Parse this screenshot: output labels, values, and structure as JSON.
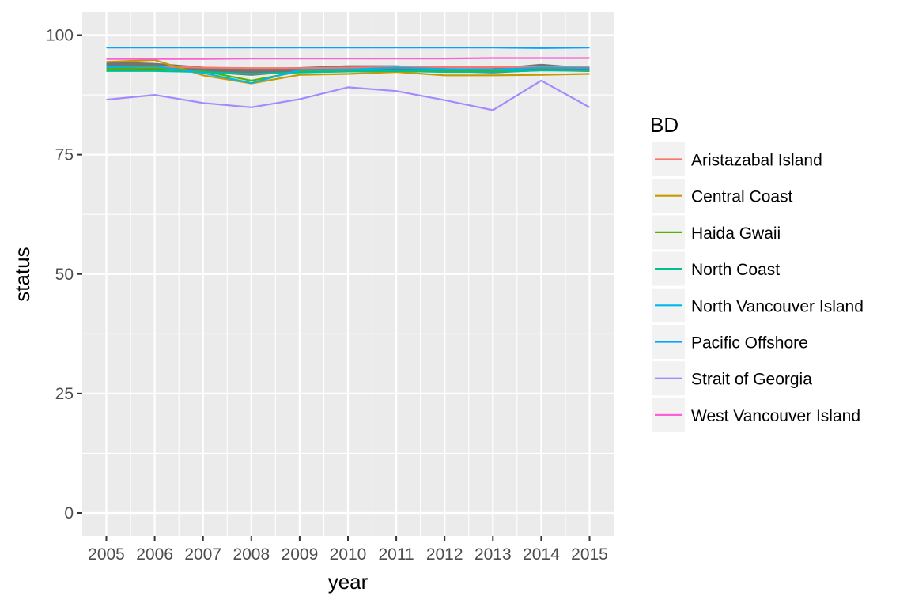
{
  "chart_data": {
    "type": "line",
    "title": "",
    "xlabel": "year",
    "ylabel": "status",
    "legend_title": "BD",
    "legend_position": "right",
    "grid": true,
    "xlim": [
      2005,
      2015
    ],
    "ylim": [
      0,
      100
    ],
    "x_ticks": [
      "2005",
      "2006",
      "2007",
      "2008",
      "2009",
      "2010",
      "2011",
      "2012",
      "2013",
      "2014",
      "2015"
    ],
    "y_ticks": [
      "0",
      "25",
      "50",
      "75",
      "100"
    ],
    "x": [
      2005,
      2006,
      2007,
      2008,
      2009,
      2010,
      2011,
      2012,
      2013,
      2014,
      2015
    ],
    "ribbon": {
      "color": "#555555",
      "lower": [
        92.8,
        92.8,
        92.2,
        91.5,
        92.3,
        92.7,
        92.8,
        92.3,
        92.0,
        92.5,
        92.3
      ],
      "upper": [
        94.5,
        94.2,
        93.4,
        93.1,
        93.3,
        93.7,
        93.7,
        93.1,
        93.1,
        94.0,
        93.2
      ]
    },
    "series": [
      {
        "name": "Aristazabal Island",
        "color": "#F8766D",
        "values": [
          93.4,
          93.4,
          93.2,
          93.1,
          93.1,
          93.2,
          93.3,
          93.3,
          93.3,
          93.3,
          93.3
        ]
      },
      {
        "name": "Central Coast",
        "color": "#C49A00",
        "values": [
          94.4,
          94.8,
          91.6,
          89.9,
          91.7,
          91.9,
          92.3,
          91.6,
          91.6,
          91.7,
          91.9
        ]
      },
      {
        "name": "Haida Gwaii",
        "color": "#53B400",
        "values": [
          93.0,
          93.1,
          92.5,
          90.5,
          92.4,
          92.6,
          92.5,
          92.4,
          92.4,
          92.7,
          92.6
        ]
      },
      {
        "name": "North Coast",
        "color": "#00C094",
        "values": [
          92.5,
          92.5,
          92.3,
          91.9,
          92.2,
          92.4,
          92.5,
          92.3,
          92.3,
          92.6,
          92.6
        ]
      },
      {
        "name": "North Vancouver Island",
        "color": "#00B6EB",
        "values": [
          93.3,
          93.5,
          92.1,
          90.0,
          92.7,
          92.8,
          93.2,
          92.9,
          92.8,
          93.2,
          93.1
        ]
      },
      {
        "name": "Pacific Offshore",
        "color": "#06A4FF",
        "values": [
          97.4,
          97.4,
          97.4,
          97.4,
          97.4,
          97.4,
          97.4,
          97.4,
          97.4,
          97.3,
          97.4
        ]
      },
      {
        "name": "Strait of Georgia",
        "color": "#A58AFF",
        "values": [
          86.5,
          87.5,
          85.8,
          84.9,
          86.6,
          89.1,
          88.3,
          86.4,
          84.3,
          90.5,
          84.9
        ]
      },
      {
        "name": "West Vancouver Island",
        "color": "#FB61D7",
        "values": [
          95.0,
          95.0,
          95.0,
          95.1,
          95.1,
          95.1,
          95.1,
          95.1,
          95.2,
          95.2,
          95.2
        ]
      }
    ]
  }
}
